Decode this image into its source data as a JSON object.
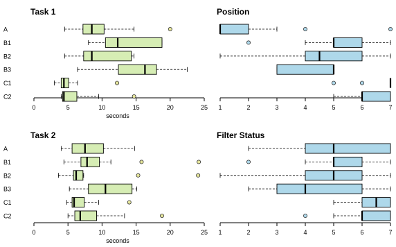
{
  "colors": {
    "task_box": "#d6edb4",
    "position_box": "#aed8ea",
    "task_outlier": "#e6e69c",
    "position_outlier": "#aed8ea",
    "stroke": "#000000"
  },
  "chart_data": [
    {
      "type": "boxplot",
      "orientation": "horizontal",
      "title": "Task 1",
      "xlabel": "seconds",
      "xlim": [
        0,
        25
      ],
      "xticks": [
        0,
        5,
        10,
        15,
        20,
        25
      ],
      "grid": false,
      "categories": [
        "A",
        "B1",
        "B2",
        "B3",
        "C1",
        "C2"
      ],
      "boxes": [
        {
          "category": "A",
          "whisker_low": 4.5,
          "q1": 7.2,
          "median": 8.5,
          "q3": 10.3,
          "whisker_high": 14.7,
          "outliers": [
            20
          ]
        },
        {
          "category": "B1",
          "whisker_low": 8,
          "q1": 10.5,
          "median": 12.3,
          "q3": 18.8,
          "whisker_high": 18.8,
          "outliers": []
        },
        {
          "category": "B2",
          "whisker_low": 4.5,
          "q1": 7.3,
          "median": 8.5,
          "q3": 14.3,
          "whisker_high": 14.7,
          "outliers": []
        },
        {
          "category": "B3",
          "whisker_low": 6.4,
          "q1": 12.4,
          "median": 16.3,
          "q3": 18,
          "whisker_high": 22.5,
          "outliers": []
        },
        {
          "category": "C1",
          "whisker_low": 3,
          "q1": 4,
          "median": 4.4,
          "q3": 5.1,
          "whisker_high": 6.4,
          "outliers": [
            12.2
          ]
        },
        {
          "category": "C2",
          "whisker_low": 4,
          "q1": 4.2,
          "median": 4.4,
          "q3": 6.3,
          "whisker_high": 9.5,
          "outliers": [
            14.7
          ]
        }
      ]
    },
    {
      "type": "boxplot",
      "orientation": "horizontal",
      "title": "Position",
      "xlabel": "",
      "xlim": [
        1,
        7
      ],
      "xticks": [
        1,
        2,
        3,
        4,
        5,
        6,
        7
      ],
      "grid": false,
      "categories": [
        "A",
        "B1",
        "B2",
        "B3",
        "C1",
        "C2"
      ],
      "boxes": [
        {
          "category": "A",
          "whisker_low": 1,
          "q1": 1,
          "median": 1,
          "q3": 2,
          "whisker_high": 3,
          "outliers": [
            4,
            7
          ]
        },
        {
          "category": "B1",
          "whisker_low": 4,
          "q1": 5,
          "median": 5,
          "q3": 6,
          "whisker_high": 7,
          "outliers": [
            2
          ]
        },
        {
          "category": "B2",
          "whisker_low": 1,
          "q1": 4,
          "median": 4.5,
          "q3": 6,
          "whisker_high": 7,
          "outliers": []
        },
        {
          "category": "B3",
          "whisker_low": 3,
          "q1": 3,
          "median": 5,
          "q3": 5,
          "whisker_high": 5,
          "outliers": []
        },
        {
          "category": "C1",
          "whisker_low": 7,
          "q1": 7,
          "median": 7,
          "q3": 7,
          "whisker_high": 7,
          "outliers": [
            5,
            6
          ]
        },
        {
          "category": "C2",
          "whisker_low": 5,
          "q1": 6,
          "median": 6,
          "q3": 7,
          "whisker_high": 7,
          "outliers": []
        }
      ]
    },
    {
      "type": "boxplot",
      "orientation": "horizontal",
      "title": "Task 2",
      "xlabel": "seconds",
      "xlim": [
        0,
        25
      ],
      "xticks": [
        0,
        5,
        10,
        15,
        20,
        25
      ],
      "grid": false,
      "categories": [
        "A",
        "B1",
        "B2",
        "B3",
        "C1",
        "C2"
      ],
      "boxes": [
        {
          "category": "A",
          "whisker_low": 4,
          "q1": 5.6,
          "median": 7.5,
          "q3": 10.2,
          "whisker_high": 14.8,
          "outliers": []
        },
        {
          "category": "B1",
          "whisker_low": 4.4,
          "q1": 6.9,
          "median": 7.8,
          "q3": 9.6,
          "whisker_high": 11.3,
          "outliers": [
            15.8,
            24.2
          ]
        },
        {
          "category": "B2",
          "whisker_low": 3.6,
          "q1": 5.8,
          "median": 6.2,
          "q3": 7.2,
          "whisker_high": 7.3,
          "outliers": [
            15.3,
            24.1
          ]
        },
        {
          "category": "B3",
          "whisker_low": 5.2,
          "q1": 8,
          "median": 10.5,
          "q3": 14.4,
          "whisker_high": 15.1,
          "outliers": []
        },
        {
          "category": "C1",
          "whisker_low": 4.8,
          "q1": 5.6,
          "median": 5.9,
          "q3": 7.4,
          "whisker_high": 9.5,
          "outliers": [
            14
          ]
        },
        {
          "category": "C2",
          "whisker_low": 5,
          "q1": 6,
          "median": 6.8,
          "q3": 9.2,
          "whisker_high": 13.3,
          "outliers": [
            18.8
          ]
        }
      ]
    },
    {
      "type": "boxplot",
      "orientation": "horizontal",
      "title": "Filter Status",
      "xlabel": "",
      "xlim": [
        1,
        7
      ],
      "xticks": [
        1,
        2,
        3,
        4,
        5,
        6,
        7
      ],
      "grid": false,
      "categories": [
        "A",
        "B1",
        "B2",
        "B3",
        "C1",
        "C2"
      ],
      "boxes": [
        {
          "category": "A",
          "whisker_low": 2,
          "q1": 4,
          "median": 5,
          "q3": 7,
          "whisker_high": 7,
          "outliers": []
        },
        {
          "category": "B1",
          "whisker_low": 4,
          "q1": 5,
          "median": 5,
          "q3": 6,
          "whisker_high": 7,
          "outliers": [
            2
          ]
        },
        {
          "category": "B2",
          "whisker_low": 1,
          "q1": 4,
          "median": 5,
          "q3": 6,
          "whisker_high": 7,
          "outliers": []
        },
        {
          "category": "B3",
          "whisker_low": 2,
          "q1": 3,
          "median": 4,
          "q3": 6,
          "whisker_high": 7,
          "outliers": []
        },
        {
          "category": "C1",
          "whisker_low": 5,
          "q1": 6,
          "median": 6.5,
          "q3": 7,
          "whisker_high": 7,
          "outliers": []
        },
        {
          "category": "C2",
          "whisker_low": 5,
          "q1": 6,
          "median": 6,
          "q3": 7,
          "whisker_high": 7,
          "outliers": [
            4
          ]
        }
      ]
    }
  ]
}
